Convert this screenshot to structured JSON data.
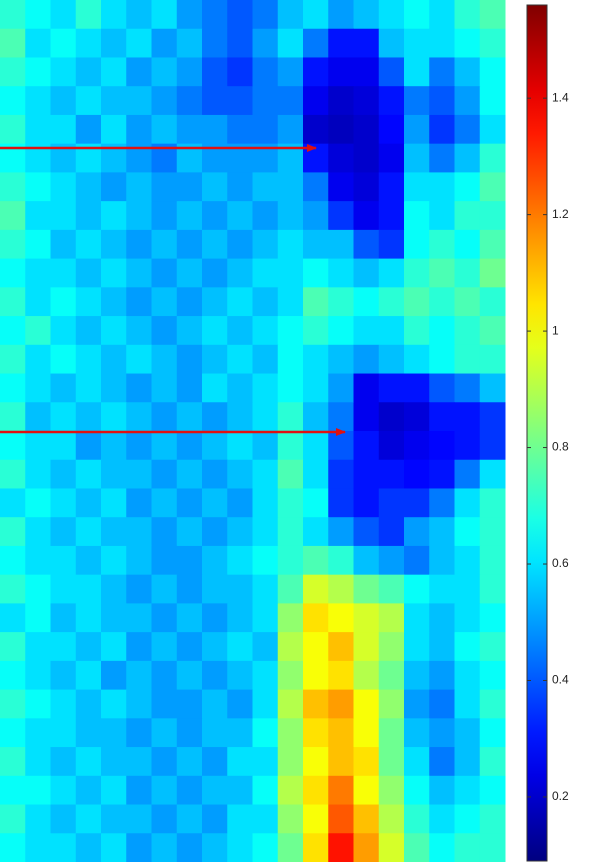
{
  "chart_data": {
    "type": "heatmap",
    "colormap": "jet",
    "clim": [
      0.09,
      1.56
    ],
    "cticks": [
      0.2,
      0.4,
      0.6,
      0.8,
      1,
      1.2,
      1.4
    ],
    "z": [
      [
        0.7,
        0.65,
        0.6,
        0.7,
        0.6,
        0.55,
        0.6,
        0.5,
        0.45,
        0.4,
        0.45,
        0.55,
        0.6,
        0.5,
        0.55,
        0.6,
        0.65,
        0.6,
        0.7,
        0.75
      ],
      [
        0.75,
        0.6,
        0.65,
        0.6,
        0.55,
        0.6,
        0.5,
        0.55,
        0.45,
        0.4,
        0.5,
        0.6,
        0.45,
        0.3,
        0.3,
        0.55,
        0.6,
        0.6,
        0.65,
        0.7
      ],
      [
        0.7,
        0.65,
        0.6,
        0.55,
        0.6,
        0.5,
        0.55,
        0.5,
        0.4,
        0.35,
        0.45,
        0.5,
        0.3,
        0.25,
        0.25,
        0.4,
        0.6,
        0.45,
        0.55,
        0.65
      ],
      [
        0.65,
        0.6,
        0.55,
        0.6,
        0.55,
        0.55,
        0.5,
        0.45,
        0.4,
        0.4,
        0.45,
        0.45,
        0.25,
        0.2,
        0.22,
        0.3,
        0.45,
        0.4,
        0.5,
        0.65
      ],
      [
        0.7,
        0.6,
        0.6,
        0.5,
        0.6,
        0.5,
        0.55,
        0.5,
        0.5,
        0.45,
        0.45,
        0.5,
        0.2,
        0.18,
        0.2,
        0.28,
        0.5,
        0.35,
        0.45,
        0.6
      ],
      [
        0.65,
        0.6,
        0.55,
        0.6,
        0.55,
        0.5,
        0.45,
        0.55,
        0.5,
        0.5,
        0.5,
        0.55,
        0.3,
        0.22,
        0.2,
        0.25,
        0.55,
        0.45,
        0.55,
        0.7
      ],
      [
        0.7,
        0.65,
        0.6,
        0.55,
        0.5,
        0.55,
        0.5,
        0.5,
        0.55,
        0.5,
        0.55,
        0.55,
        0.45,
        0.25,
        0.22,
        0.3,
        0.6,
        0.6,
        0.65,
        0.75
      ],
      [
        0.75,
        0.6,
        0.6,
        0.55,
        0.6,
        0.55,
        0.5,
        0.55,
        0.5,
        0.55,
        0.5,
        0.55,
        0.5,
        0.35,
        0.25,
        0.3,
        0.65,
        0.6,
        0.7,
        0.7
      ],
      [
        0.7,
        0.65,
        0.55,
        0.6,
        0.55,
        0.5,
        0.55,
        0.5,
        0.55,
        0.5,
        0.55,
        0.6,
        0.55,
        0.55,
        0.4,
        0.35,
        0.65,
        0.7,
        0.65,
        0.75
      ],
      [
        0.65,
        0.6,
        0.6,
        0.55,
        0.6,
        0.55,
        0.5,
        0.55,
        0.5,
        0.55,
        0.6,
        0.6,
        0.65,
        0.6,
        0.55,
        0.6,
        0.7,
        0.75,
        0.7,
        0.8
      ],
      [
        0.7,
        0.6,
        0.65,
        0.6,
        0.55,
        0.5,
        0.55,
        0.5,
        0.55,
        0.6,
        0.55,
        0.6,
        0.75,
        0.7,
        0.65,
        0.7,
        0.75,
        0.7,
        0.75,
        0.7
      ],
      [
        0.65,
        0.7,
        0.6,
        0.55,
        0.6,
        0.55,
        0.5,
        0.55,
        0.6,
        0.55,
        0.6,
        0.65,
        0.7,
        0.65,
        0.6,
        0.6,
        0.7,
        0.65,
        0.7,
        0.75
      ],
      [
        0.7,
        0.6,
        0.65,
        0.6,
        0.55,
        0.6,
        0.55,
        0.5,
        0.55,
        0.6,
        0.55,
        0.65,
        0.6,
        0.55,
        0.5,
        0.55,
        0.6,
        0.65,
        0.7,
        0.7
      ],
      [
        0.65,
        0.6,
        0.55,
        0.6,
        0.55,
        0.5,
        0.55,
        0.5,
        0.6,
        0.55,
        0.6,
        0.65,
        0.6,
        0.5,
        0.25,
        0.3,
        0.3,
        0.4,
        0.45,
        0.55
      ],
      [
        0.7,
        0.55,
        0.6,
        0.55,
        0.6,
        0.55,
        0.5,
        0.55,
        0.5,
        0.55,
        0.6,
        0.7,
        0.55,
        0.45,
        0.25,
        0.2,
        0.22,
        0.3,
        0.3,
        0.35
      ],
      [
        0.65,
        0.6,
        0.6,
        0.5,
        0.55,
        0.5,
        0.55,
        0.5,
        0.55,
        0.6,
        0.55,
        0.7,
        0.6,
        0.4,
        0.3,
        0.22,
        0.25,
        0.28,
        0.3,
        0.35
      ],
      [
        0.7,
        0.6,
        0.55,
        0.6,
        0.55,
        0.55,
        0.5,
        0.55,
        0.5,
        0.55,
        0.6,
        0.75,
        0.6,
        0.35,
        0.3,
        0.3,
        0.28,
        0.3,
        0.45,
        0.6
      ],
      [
        0.6,
        0.65,
        0.6,
        0.55,
        0.6,
        0.5,
        0.55,
        0.5,
        0.55,
        0.5,
        0.6,
        0.7,
        0.65,
        0.35,
        0.3,
        0.35,
        0.35,
        0.45,
        0.6,
        0.7
      ],
      [
        0.7,
        0.6,
        0.55,
        0.6,
        0.55,
        0.55,
        0.5,
        0.55,
        0.5,
        0.55,
        0.6,
        0.7,
        0.6,
        0.5,
        0.4,
        0.35,
        0.5,
        0.55,
        0.65,
        0.7
      ],
      [
        0.65,
        0.6,
        0.6,
        0.55,
        0.6,
        0.55,
        0.5,
        0.5,
        0.55,
        0.6,
        0.65,
        0.7,
        0.75,
        0.7,
        0.55,
        0.5,
        0.45,
        0.55,
        0.6,
        0.7
      ],
      [
        0.7,
        0.65,
        0.6,
        0.6,
        0.55,
        0.5,
        0.55,
        0.5,
        0.55,
        0.55,
        0.6,
        0.75,
        0.95,
        0.9,
        0.8,
        0.75,
        0.65,
        0.6,
        0.6,
        0.7
      ],
      [
        0.6,
        0.65,
        0.55,
        0.6,
        0.55,
        0.55,
        0.5,
        0.55,
        0.5,
        0.55,
        0.6,
        0.85,
        1.05,
        1.0,
        0.95,
        0.9,
        0.6,
        0.55,
        0.6,
        0.65
      ],
      [
        0.7,
        0.6,
        0.6,
        0.55,
        0.6,
        0.5,
        0.55,
        0.5,
        0.55,
        0.6,
        0.55,
        0.9,
        1.0,
        1.1,
        0.95,
        0.85,
        0.6,
        0.55,
        0.65,
        0.7
      ],
      [
        0.65,
        0.6,
        0.55,
        0.6,
        0.5,
        0.55,
        0.5,
        0.55,
        0.5,
        0.55,
        0.6,
        0.85,
        1.0,
        1.05,
        0.9,
        0.8,
        0.55,
        0.5,
        0.6,
        0.65
      ],
      [
        0.7,
        0.65,
        0.6,
        0.55,
        0.6,
        0.55,
        0.5,
        0.5,
        0.55,
        0.5,
        0.6,
        0.9,
        1.1,
        1.15,
        1.0,
        0.85,
        0.5,
        0.45,
        0.6,
        0.7
      ],
      [
        0.65,
        0.6,
        0.6,
        0.55,
        0.55,
        0.5,
        0.55,
        0.5,
        0.55,
        0.55,
        0.65,
        0.85,
        1.05,
        1.1,
        1.0,
        0.8,
        0.55,
        0.5,
        0.55,
        0.65
      ],
      [
        0.7,
        0.6,
        0.55,
        0.6,
        0.55,
        0.55,
        0.5,
        0.55,
        0.5,
        0.6,
        0.6,
        0.85,
        1.0,
        1.1,
        1.05,
        0.8,
        0.6,
        0.45,
        0.55,
        0.7
      ],
      [
        0.65,
        0.65,
        0.6,
        0.55,
        0.6,
        0.5,
        0.55,
        0.5,
        0.55,
        0.55,
        0.65,
        0.9,
        1.05,
        1.2,
        1.0,
        0.85,
        0.65,
        0.55,
        0.6,
        0.65
      ],
      [
        0.7,
        0.6,
        0.55,
        0.6,
        0.55,
        0.55,
        0.5,
        0.55,
        0.5,
        0.6,
        0.6,
        0.85,
        1.0,
        1.25,
        1.1,
        0.9,
        0.7,
        0.6,
        0.65,
        0.7
      ],
      [
        0.65,
        0.6,
        0.6,
        0.55,
        0.6,
        0.5,
        0.55,
        0.5,
        0.55,
        0.6,
        0.65,
        0.8,
        1.05,
        1.35,
        1.15,
        0.95,
        0.75,
        0.65,
        0.7,
        0.7
      ]
    ]
  }
}
